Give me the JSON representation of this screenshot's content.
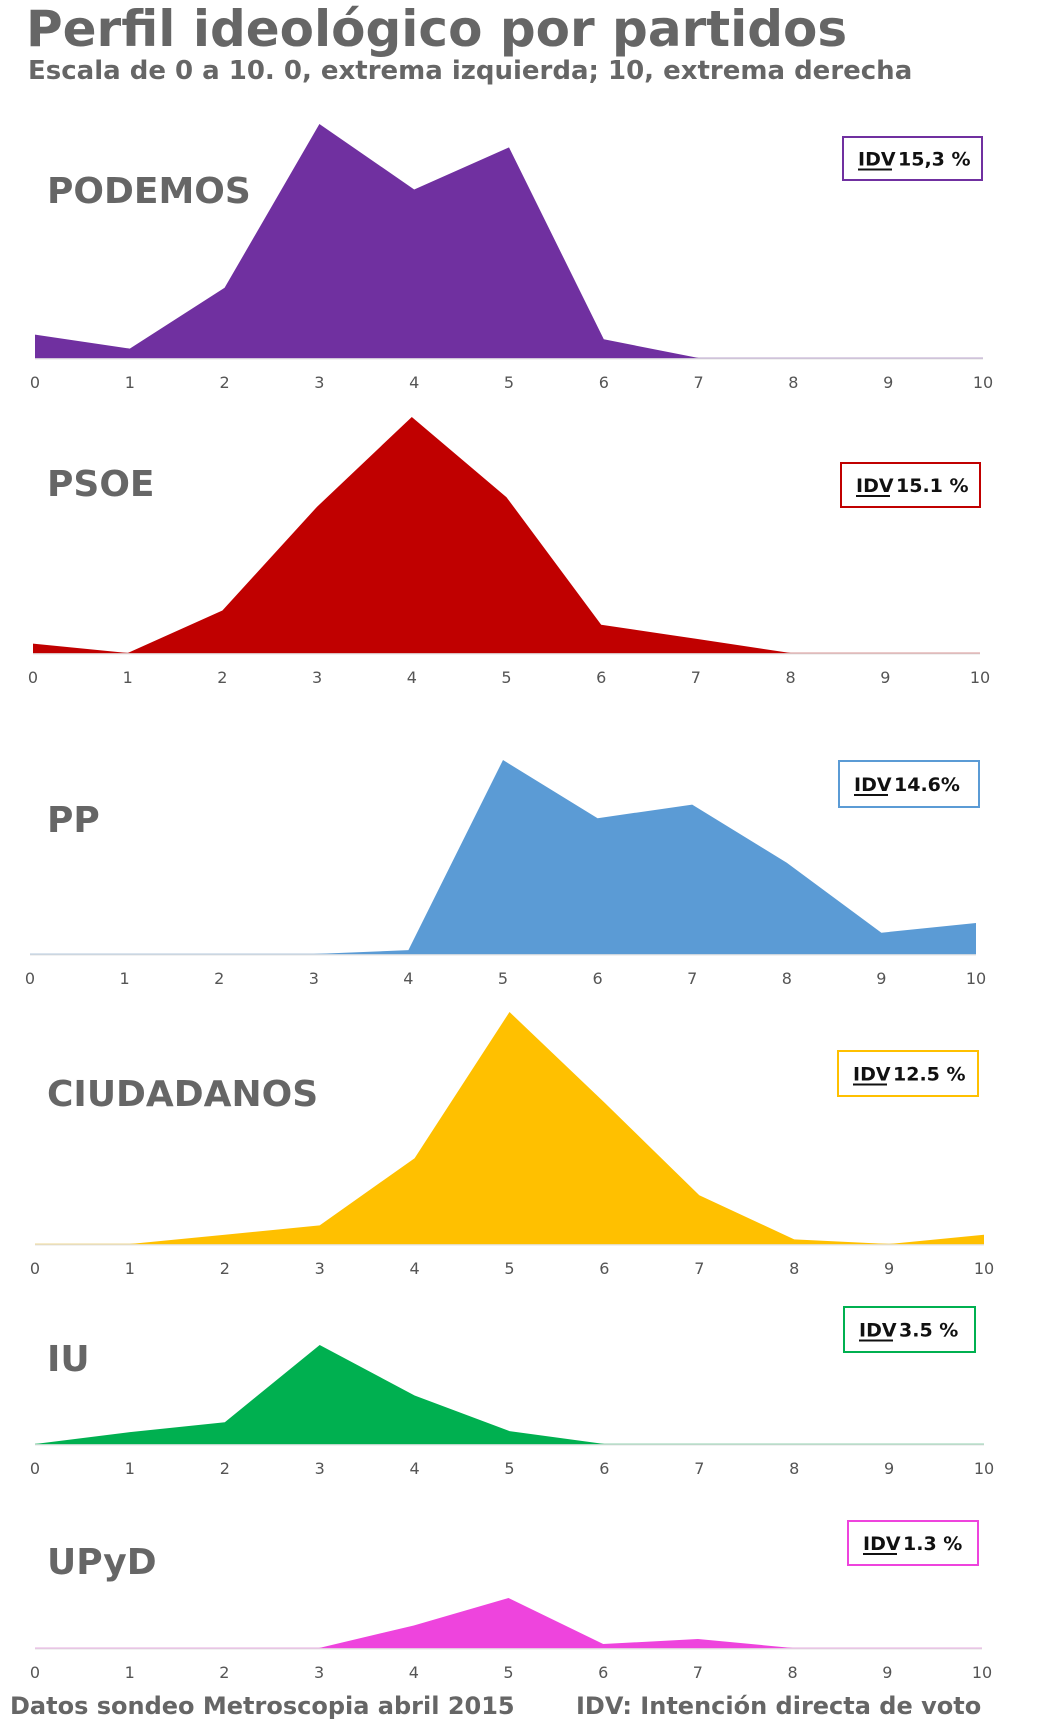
{
  "title": "Perfil ideológico por partidos",
  "subtitle": "Escala de 0 a 10. 0, extrema izquierda; 10, extrema derecha",
  "footer": {
    "source": "Datos sondeo Metroscopia abril 2015",
    "note": "IDV: Intención directa de voto"
  },
  "chart_data": [
    {
      "type": "area",
      "party": "PODEMOS",
      "idv_label": "IDV",
      "idv_value": "15,3 %",
      "color": "#7030a0",
      "x": [
        0,
        1,
        2,
        3,
        4,
        5,
        6,
        7,
        8,
        9,
        10
      ],
      "values": [
        10,
        4,
        30,
        100,
        72,
        90,
        8,
        0,
        0,
        0,
        0
      ],
      "xlim": [
        0,
        10
      ],
      "ylim": [
        0,
        100
      ]
    },
    {
      "type": "area",
      "party": "PSOE",
      "idv_label": "IDV",
      "idv_value": "15.1 %",
      "color": "#c00000",
      "x": [
        0,
        1,
        2,
        3,
        4,
        5,
        6,
        7,
        8,
        9,
        10
      ],
      "values": [
        4,
        0,
        18,
        62,
        100,
        66,
        12,
        6,
        0,
        0,
        0
      ],
      "xlim": [
        0,
        10
      ],
      "ylim": [
        0,
        100
      ]
    },
    {
      "type": "area",
      "party": "PP",
      "idv_label": "IDV",
      "idv_value": "14.6%",
      "color": "#5b9bd5",
      "x": [
        0,
        1,
        2,
        3,
        4,
        5,
        6,
        7,
        8,
        9,
        10
      ],
      "values": [
        0,
        0,
        0,
        0,
        2,
        100,
        70,
        77,
        47,
        11,
        16
      ],
      "xlim": [
        0,
        10
      ],
      "ylim": [
        0,
        100
      ]
    },
    {
      "type": "area",
      "party": "CIUDADANOS",
      "idv_label": "IDV",
      "idv_value": "12.5 %",
      "color": "#ffc000",
      "x": [
        0,
        1,
        2,
        3,
        4,
        5,
        6,
        7,
        8,
        9,
        10
      ],
      "values": [
        0,
        0,
        4,
        8,
        37,
        100,
        61,
        21,
        2,
        0,
        4
      ],
      "xlim": [
        0,
        10
      ],
      "ylim": [
        0,
        100
      ]
    },
    {
      "type": "area",
      "party": "IU",
      "idv_label": "IDV",
      "idv_value": "3.5 %",
      "color": "#00b050",
      "x": [
        0,
        1,
        2,
        3,
        4,
        5,
        6,
        7,
        8,
        9,
        10
      ],
      "values": [
        0,
        12,
        22,
        100,
        49,
        13,
        0,
        0,
        0,
        0,
        0
      ],
      "xlim": [
        0,
        10
      ],
      "ylim": [
        0,
        100
      ]
    },
    {
      "type": "area",
      "party": "UPyD",
      "idv_label": "IDV",
      "idv_value": "1.3 %",
      "color": "#ee44dd",
      "x": [
        0,
        1,
        2,
        3,
        4,
        5,
        6,
        7,
        8,
        9,
        10
      ],
      "values": [
        0,
        0,
        0,
        0,
        45,
        100,
        8,
        18,
        0,
        0,
        0
      ],
      "xlim": [
        0,
        10
      ],
      "ylim": [
        0,
        100
      ]
    }
  ]
}
